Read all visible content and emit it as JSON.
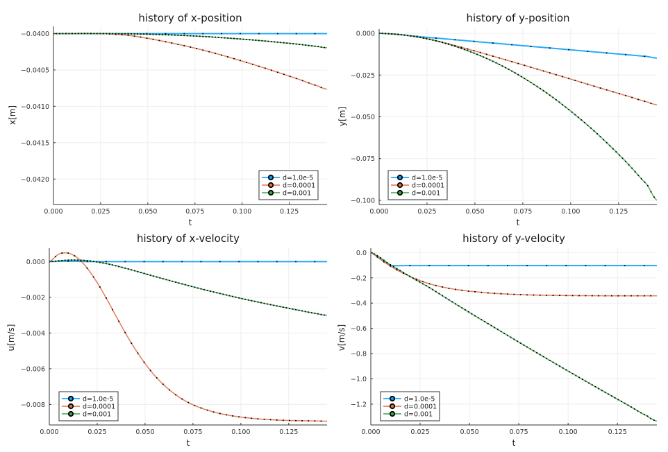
{
  "colors": {
    "series": [
      "#009af9",
      "#e26f46",
      "#3da44d"
    ],
    "marker": "#000000",
    "grid": "#eeeeee",
    "axis": "#333333"
  },
  "legend_labels": [
    "d=1.0e-5",
    "d=0.0001",
    "d=0.001"
  ],
  "chart_data": [
    {
      "id": "x-position",
      "type": "line",
      "title": "history of x-position",
      "xlabel": "t",
      "ylabel": "x[m]",
      "xlim": [
        0,
        0.145
      ],
      "ylim": [
        -0.04235,
        -0.0399
      ],
      "xticks": [
        0,
        0.025,
        0.05,
        0.075,
        0.1,
        0.125
      ],
      "xtick_labels": [
        "0.000",
        "0.025",
        "0.050",
        "0.075",
        "0.100",
        "0.125"
      ],
      "yticks": [
        -0.04,
        -0.0405,
        -0.041,
        -0.0415,
        -0.042
      ],
      "ytick_labels": [
        "−0.0400",
        "−0.0405",
        "−0.0410",
        "−0.0415",
        "−0.0420"
      ],
      "legend": "bottom-right",
      "grid": true,
      "series": [
        {
          "name": "d=1.0e-5",
          "x": [
            0,
            0.01,
            0.02,
            0.03,
            0.04,
            0.05,
            0.06,
            0.07,
            0.08,
            0.09,
            0.1,
            0.11,
            0.12,
            0.13,
            0.14,
            0.145
          ],
          "y": [
            -0.04,
            -0.04,
            -0.04,
            -0.04,
            -0.04,
            -0.04,
            -0.04,
            -0.04,
            -0.04,
            -0.04,
            -0.04,
            -0.04,
            -0.04,
            -0.04,
            -0.04,
            -0.04
          ]
        },
        {
          "name": "d=0.0001",
          "x": [
            0,
            0.01,
            0.02,
            0.03,
            0.04,
            0.05,
            0.06,
            0.07,
            0.08,
            0.09,
            0.1,
            0.11,
            0.12,
            0.13,
            0.14,
            0.145
          ],
          "y": [
            -0.04,
            -0.039998,
            -0.039998,
            -0.040005,
            -0.040025,
            -0.040065,
            -0.040115,
            -0.04017,
            -0.040232,
            -0.040302,
            -0.040378,
            -0.040458,
            -0.040542,
            -0.040628,
            -0.040718,
            -0.040765
          ]
        },
        {
          "name": "d=0.001",
          "x": [
            0,
            0.01,
            0.02,
            0.03,
            0.04,
            0.05,
            0.06,
            0.07,
            0.08,
            0.09,
            0.1,
            0.11,
            0.12,
            0.13,
            0.14,
            0.145
          ],
          "y": [
            -0.04,
            -0.039999,
            -0.039998,
            -0.04,
            -0.040003,
            -0.040008,
            -0.040016,
            -0.040027,
            -0.04004,
            -0.040057,
            -0.040076,
            -0.040097,
            -0.040121,
            -0.040147,
            -0.040177,
            -0.040195
          ]
        }
      ]
    },
    {
      "id": "y-position",
      "type": "line",
      "title": "history of y-position",
      "xlabel": "t",
      "ylabel": "y[m]",
      "xlim": [
        0,
        0.145
      ],
      "ylim": [
        -0.1025,
        0.0025
      ],
      "xticks": [
        0,
        0.025,
        0.05,
        0.075,
        0.1,
        0.125
      ],
      "xtick_labels": [
        "0.000",
        "0.025",
        "0.050",
        "0.075",
        "0.100",
        "0.125"
      ],
      "yticks": [
        0,
        -0.025,
        -0.05,
        -0.075,
        -0.1
      ],
      "ytick_labels": [
        "0.000",
        "−0.025",
        "−0.050",
        "−0.075",
        "−0.100"
      ],
      "legend": "bottom-left",
      "grid": true,
      "series": [
        {
          "name": "d=1.0e-5",
          "x": [
            0,
            0.01,
            0.02,
            0.03,
            0.04,
            0.05,
            0.06,
            0.07,
            0.08,
            0.09,
            0.1,
            0.11,
            0.12,
            0.13,
            0.14,
            0.145
          ],
          "y": [
            0,
            -0.0007,
            -0.0019,
            -0.0029,
            -0.0039,
            -0.0049,
            -0.0059,
            -0.0069,
            -0.0079,
            -0.0089,
            -0.0099,
            -0.0109,
            -0.0119,
            -0.0129,
            -0.0139,
            -0.0149
          ]
        },
        {
          "name": "d=0.0001",
          "x": [
            0,
            0.01,
            0.02,
            0.03,
            0.04,
            0.05,
            0.06,
            0.07,
            0.08,
            0.09,
            0.1,
            0.11,
            0.12,
            0.13,
            0.14,
            0.145
          ],
          "y": [
            0,
            -0.0007,
            -0.0022,
            -0.0045,
            -0.0075,
            -0.0106,
            -0.0139,
            -0.0172,
            -0.0206,
            -0.024,
            -0.0274,
            -0.0309,
            -0.0343,
            -0.0377,
            -0.0411,
            -0.0428
          ]
        },
        {
          "name": "d=0.001",
          "x": [
            0,
            0.01,
            0.02,
            0.03,
            0.04,
            0.05,
            0.06,
            0.07,
            0.08,
            0.09,
            0.1,
            0.11,
            0.12,
            0.13,
            0.14,
            0.145
          ],
          "y": [
            0,
            -0.0007,
            -0.0022,
            -0.0046,
            -0.0079,
            -0.0121,
            -0.0171,
            -0.0231,
            -0.03,
            -0.0378,
            -0.0466,
            -0.0562,
            -0.0668,
            -0.0783,
            -0.0907,
            -0.1
          ]
        }
      ]
    },
    {
      "id": "x-velocity",
      "type": "line",
      "title": "history of x-velocity",
      "xlabel": "t",
      "ylabel": "u[m/s]",
      "xlim": [
        0,
        0.145
      ],
      "ylim": [
        -0.00915,
        0.00075
      ],
      "xticks": [
        0,
        0.025,
        0.05,
        0.075,
        0.1,
        0.125
      ],
      "xtick_labels": [
        "0.000",
        "0.025",
        "0.050",
        "0.075",
        "0.100",
        "0.125"
      ],
      "yticks": [
        0,
        -0.002,
        -0.004,
        -0.006,
        -0.008
      ],
      "ytick_labels": [
        "0.000",
        "−0.002",
        "−0.004",
        "−0.006",
        "−0.008"
      ],
      "legend": "bottom-left",
      "grid": true,
      "series": [
        {
          "name": "d=1.0e-5",
          "x": [
            0,
            0.01,
            0.02,
            0.03,
            0.04,
            0.05,
            0.06,
            0.07,
            0.08,
            0.09,
            0.1,
            0.11,
            0.12,
            0.13,
            0.14,
            0.145
          ],
          "y": [
            0,
            2e-05,
            0,
            0,
            0,
            0,
            0,
            0,
            0,
            0,
            0,
            0,
            0,
            0,
            0,
            0
          ]
        },
        {
          "name": "d=0.0001",
          "x": [
            0,
            0.005,
            0.01,
            0.015,
            0.02,
            0.025,
            0.03,
            0.035,
            0.04,
            0.045,
            0.05,
            0.055,
            0.06,
            0.065,
            0.07,
            0.075,
            0.08,
            0.085,
            0.09,
            0.095,
            0.1,
            0.105,
            0.11,
            0.115,
            0.12,
            0.125,
            0.13,
            0.135,
            0.14,
            0.145
          ],
          "y": [
            0,
            0.00042,
            0.00047,
            0.00018,
            -0.0004,
            -0.00118,
            -0.0021,
            -0.00309,
            -0.00405,
            -0.00493,
            -0.00571,
            -0.00638,
            -0.00693,
            -0.00738,
            -0.00774,
            -0.00802,
            -0.00823,
            -0.0084,
            -0.00853,
            -0.00863,
            -0.00871,
            -0.00877,
            -0.00882,
            -0.00885,
            -0.00888,
            -0.0089,
            -0.00891,
            -0.00892,
            -0.00893,
            -0.00894
          ]
        },
        {
          "name": "d=0.001",
          "x": [
            0,
            0.01,
            0.02,
            0.03,
            0.04,
            0.05,
            0.06,
            0.07,
            0.08,
            0.09,
            0.1,
            0.11,
            0.12,
            0.13,
            0.14,
            0.145
          ],
          "y": [
            0,
            8e-05,
            5e-05,
            -0.00012,
            -0.00038,
            -0.00068,
            -0.00098,
            -0.00127,
            -0.00155,
            -0.00181,
            -0.00206,
            -0.00229,
            -0.00251,
            -0.00272,
            -0.00292,
            -0.00301
          ]
        }
      ]
    },
    {
      "id": "y-velocity",
      "type": "line",
      "title": "history of y-velocity",
      "xlabel": "t",
      "ylabel": "v[m/s]",
      "xlim": [
        0,
        0.145
      ],
      "ylim": [
        -1.365,
        0.035
      ],
      "xticks": [
        0,
        0.025,
        0.05,
        0.075,
        0.1,
        0.125
      ],
      "xtick_labels": [
        "0.000",
        "0.025",
        "0.050",
        "0.075",
        "0.100",
        "0.125"
      ],
      "yticks": [
        0,
        -0.2,
        -0.4,
        -0.6,
        -0.8,
        -1.0,
        -1.2
      ],
      "ytick_labels": [
        "0.0",
        "−0.2",
        "−0.4",
        "−0.6",
        "−0.8",
        "−1.0",
        "−1.2"
      ],
      "legend": "bottom-left",
      "grid": true,
      "series": [
        {
          "name": "d=1.0e-5",
          "x": [
            0,
            0.005,
            0.01,
            0.0105,
            0.02,
            0.04,
            0.06,
            0.08,
            0.1,
            0.12,
            0.14,
            0.145
          ],
          "y": [
            0,
            -0.049,
            -0.098,
            -0.103,
            -0.103,
            -0.103,
            -0.103,
            -0.103,
            -0.103,
            -0.103,
            -0.103,
            -0.103
          ]
        },
        {
          "name": "d=0.0001",
          "x": [
            0,
            0.005,
            0.01,
            0.015,
            0.02,
            0.025,
            0.03,
            0.035,
            0.04,
            0.045,
            0.05,
            0.06,
            0.07,
            0.08,
            0.09,
            0.1,
            0.11,
            0.12,
            0.13,
            0.14,
            0.145
          ],
          "y": [
            0,
            -0.056,
            -0.108,
            -0.152,
            -0.19,
            -0.222,
            -0.248,
            -0.268,
            -0.284,
            -0.296,
            -0.306,
            -0.32,
            -0.329,
            -0.335,
            -0.338,
            -0.34,
            -0.341,
            -0.342,
            -0.342,
            -0.342,
            -0.342
          ]
        },
        {
          "name": "d=0.001",
          "x": [
            0,
            0.01,
            0.02,
            0.03,
            0.04,
            0.05,
            0.06,
            0.07,
            0.08,
            0.09,
            0.1,
            0.11,
            0.12,
            0.13,
            0.14,
            0.145
          ],
          "y": [
            0,
            -0.097,
            -0.19,
            -0.28,
            -0.378,
            -0.474,
            -0.568,
            -0.662,
            -0.755,
            -0.847,
            -0.938,
            -1.028,
            -1.117,
            -1.205,
            -1.292,
            -1.335
          ]
        }
      ]
    }
  ]
}
